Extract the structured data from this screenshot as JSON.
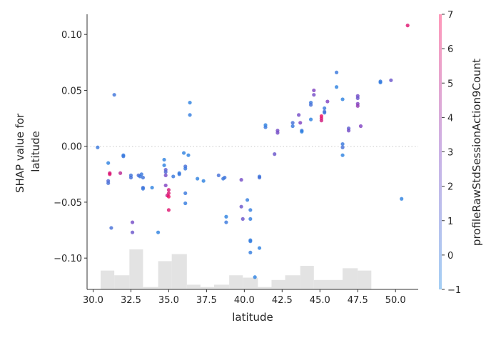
{
  "chart_data": {
    "type": "scatter",
    "xlabel": "latitude",
    "ylabel_lines": [
      "SHAP value for",
      "latitude"
    ],
    "colorbar_label": "profileRawStdSessionAction9Count",
    "xlim": [
      29.6,
      51.5
    ],
    "ylim": [
      -0.128,
      0.118
    ],
    "x_ticks": [
      30.0,
      32.5,
      35.0,
      37.5,
      40.0,
      42.5,
      45.0,
      47.5,
      50.0
    ],
    "x_tick_labels": [
      "30.0",
      "32.5",
      "35.0",
      "37.5",
      "40.0",
      "42.5",
      "45.0",
      "47.5",
      "50.0"
    ],
    "y_ticks": [
      0.1,
      0.05,
      0.0,
      -0.05,
      -0.1
    ],
    "y_tick_labels": [
      "0.10",
      "0.05",
      "0.00",
      "−0.05",
      "−0.10"
    ],
    "color_range": [
      -1,
      7
    ],
    "color_ticks": [
      7,
      6,
      5,
      4,
      3,
      2,
      1,
      0,
      -1
    ],
    "color_tick_labels": [
      "7",
      "6",
      "5",
      "4",
      "3",
      "2",
      "1",
      "0",
      "−1"
    ],
    "colors": {
      "low": "#1E88E5",
      "mid": "#7E3FC0",
      "high": "#FF0052",
      "histogram": "#e3e3e3",
      "zero_line": "#c8c8c8"
    },
    "histogram": {
      "bin_edges": [
        30.5,
        31.4,
        32.4,
        33.3,
        34.3,
        35.2,
        36.2,
        37.1,
        38.0,
        39.0,
        39.9,
        40.9,
        41.8,
        42.7,
        43.7,
        44.6,
        45.6,
        46.5,
        47.5,
        48.4,
        49.3,
        50.3
      ],
      "counts": [
        8,
        6,
        17,
        1,
        12,
        15,
        2,
        1,
        2,
        6,
        5,
        1,
        4,
        6,
        10,
        4,
        4,
        9,
        8,
        0,
        0
      ]
    },
    "points": [
      {
        "x": 30.3,
        "y": -0.001,
        "c": 0.0
      },
      {
        "x": 31.0,
        "y": -0.015,
        "c": -0.5
      },
      {
        "x": 31.0,
        "y": -0.031,
        "c": 1.0
      },
      {
        "x": 31.0,
        "y": -0.033,
        "c": 0.5
      },
      {
        "x": 31.1,
        "y": -0.024,
        "c": 5.5
      },
      {
        "x": 31.1,
        "y": -0.025,
        "c": 6.0
      },
      {
        "x": 31.2,
        "y": -0.073,
        "c": 0.5
      },
      {
        "x": 31.4,
        "y": 0.046,
        "c": 0.2
      },
      {
        "x": 31.8,
        "y": -0.024,
        "c": 4.8
      },
      {
        "x": 32.0,
        "y": -0.008,
        "c": -0.2
      },
      {
        "x": 32.0,
        "y": -0.009,
        "c": 0.0
      },
      {
        "x": 32.5,
        "y": -0.026,
        "c": 0.2
      },
      {
        "x": 32.5,
        "y": -0.028,
        "c": 0.5
      },
      {
        "x": 32.6,
        "y": -0.068,
        "c": 2.5
      },
      {
        "x": 32.6,
        "y": -0.077,
        "c": 2.0
      },
      {
        "x": 33.0,
        "y": -0.026,
        "c": 0.8
      },
      {
        "x": 33.1,
        "y": -0.027,
        "c": 0.0
      },
      {
        "x": 33.2,
        "y": -0.025,
        "c": 0.0
      },
      {
        "x": 33.3,
        "y": -0.028,
        "c": 0.3
      },
      {
        "x": 33.3,
        "y": -0.037,
        "c": 0.5
      },
      {
        "x": 33.3,
        "y": -0.038,
        "c": 0.0
      },
      {
        "x": 33.9,
        "y": -0.037,
        "c": -0.5
      },
      {
        "x": 34.3,
        "y": -0.077,
        "c": -0.5
      },
      {
        "x": 34.7,
        "y": -0.012,
        "c": -0.5
      },
      {
        "x": 34.7,
        "y": -0.017,
        "c": -0.5
      },
      {
        "x": 34.8,
        "y": -0.021,
        "c": 1.5
      },
      {
        "x": 34.8,
        "y": -0.023,
        "c": 1.0
      },
      {
        "x": 34.8,
        "y": -0.026,
        "c": 2.5
      },
      {
        "x": 34.8,
        "y": -0.035,
        "c": 3.0
      },
      {
        "x": 34.9,
        "y": -0.044,
        "c": 5.0
      },
      {
        "x": 35.0,
        "y": -0.039,
        "c": 5.5
      },
      {
        "x": 35.0,
        "y": -0.042,
        "c": 6.0
      },
      {
        "x": 35.0,
        "y": -0.045,
        "c": 6.5
      },
      {
        "x": 35.0,
        "y": -0.057,
        "c": 6.0
      },
      {
        "x": 35.3,
        "y": -0.027,
        "c": 0.0
      },
      {
        "x": 35.7,
        "y": -0.024,
        "c": -0.2
      },
      {
        "x": 35.7,
        "y": -0.025,
        "c": 0.0
      },
      {
        "x": 36.0,
        "y": -0.006,
        "c": -0.5
      },
      {
        "x": 36.1,
        "y": -0.018,
        "c": 0.5
      },
      {
        "x": 36.1,
        "y": -0.02,
        "c": 0.0
      },
      {
        "x": 36.1,
        "y": -0.042,
        "c": 0.0
      },
      {
        "x": 36.1,
        "y": -0.051,
        "c": -0.2
      },
      {
        "x": 36.3,
        "y": -0.008,
        "c": -0.5
      },
      {
        "x": 36.4,
        "y": 0.039,
        "c": -0.5
      },
      {
        "x": 36.4,
        "y": 0.028,
        "c": -0.3
      },
      {
        "x": 36.9,
        "y": -0.029,
        "c": -0.5
      },
      {
        "x": 37.3,
        "y": -0.031,
        "c": -0.5
      },
      {
        "x": 38.3,
        "y": -0.026,
        "c": 0.5
      },
      {
        "x": 38.6,
        "y": -0.029,
        "c": 0.0
      },
      {
        "x": 38.7,
        "y": -0.028,
        "c": 0.2
      },
      {
        "x": 38.8,
        "y": -0.063,
        "c": -0.5
      },
      {
        "x": 38.8,
        "y": -0.068,
        "c": 0.0
      },
      {
        "x": 39.8,
        "y": -0.03,
        "c": 2.5
      },
      {
        "x": 39.8,
        "y": -0.054,
        "c": 2.0
      },
      {
        "x": 39.9,
        "y": -0.065,
        "c": 2.0
      },
      {
        "x": 40.2,
        "y": -0.048,
        "c": -0.3
      },
      {
        "x": 40.4,
        "y": -0.057,
        "c": -0.3
      },
      {
        "x": 40.4,
        "y": -0.065,
        "c": -0.3
      },
      {
        "x": 40.4,
        "y": -0.084,
        "c": -0.3
      },
      {
        "x": 40.4,
        "y": -0.085,
        "c": -0.3
      },
      {
        "x": 40.4,
        "y": -0.095,
        "c": -0.3
      },
      {
        "x": 40.7,
        "y": -0.117,
        "c": -0.5
      },
      {
        "x": 41.0,
        "y": -0.027,
        "c": 0.0
      },
      {
        "x": 41.0,
        "y": -0.028,
        "c": 0.5
      },
      {
        "x": 41.0,
        "y": -0.091,
        "c": -0.5
      },
      {
        "x": 41.4,
        "y": 0.019,
        "c": -0.5
      },
      {
        "x": 41.4,
        "y": 0.017,
        "c": 0.0
      },
      {
        "x": 42.0,
        "y": -0.007,
        "c": 2.0
      },
      {
        "x": 42.2,
        "y": 0.014,
        "c": 2.5
      },
      {
        "x": 42.2,
        "y": 0.012,
        "c": 2.5
      },
      {
        "x": 43.2,
        "y": 0.021,
        "c": 0.5
      },
      {
        "x": 43.2,
        "y": 0.018,
        "c": 0.0
      },
      {
        "x": 43.6,
        "y": 0.028,
        "c": 2.5
      },
      {
        "x": 43.7,
        "y": 0.021,
        "c": 3.0
      },
      {
        "x": 43.8,
        "y": 0.014,
        "c": 0.0
      },
      {
        "x": 43.8,
        "y": 0.013,
        "c": -0.5
      },
      {
        "x": 44.4,
        "y": 0.039,
        "c": 0.0
      },
      {
        "x": 44.4,
        "y": 0.037,
        "c": 0.5
      },
      {
        "x": 44.4,
        "y": 0.024,
        "c": -0.5
      },
      {
        "x": 44.6,
        "y": 0.05,
        "c": 3.0
      },
      {
        "x": 44.6,
        "y": 0.046,
        "c": 2.5
      },
      {
        "x": 45.1,
        "y": 0.027,
        "c": 6.5
      },
      {
        "x": 45.1,
        "y": 0.025,
        "c": 6.0
      },
      {
        "x": 45.1,
        "y": 0.023,
        "c": 5.5
      },
      {
        "x": 45.3,
        "y": 0.034,
        "c": 0.0
      },
      {
        "x": 45.3,
        "y": 0.031,
        "c": 0.5
      },
      {
        "x": 45.3,
        "y": 0.03,
        "c": 0.3
      },
      {
        "x": 45.5,
        "y": 0.04,
        "c": 3.0
      },
      {
        "x": 46.1,
        "y": 0.066,
        "c": 0.0
      },
      {
        "x": 46.1,
        "y": 0.053,
        "c": -0.5
      },
      {
        "x": 46.5,
        "y": 0.042,
        "c": -0.5
      },
      {
        "x": 46.5,
        "y": 0.002,
        "c": 0.0
      },
      {
        "x": 46.5,
        "y": -0.001,
        "c": 0.5
      },
      {
        "x": 46.5,
        "y": -0.008,
        "c": -0.5
      },
      {
        "x": 46.9,
        "y": 0.016,
        "c": 1.5
      },
      {
        "x": 46.9,
        "y": 0.014,
        "c": 2.5
      },
      {
        "x": 47.5,
        "y": 0.045,
        "c": 2.5
      },
      {
        "x": 47.5,
        "y": 0.043,
        "c": 2.0
      },
      {
        "x": 47.5,
        "y": 0.038,
        "c": 3.0
      },
      {
        "x": 47.5,
        "y": 0.036,
        "c": 3.5
      },
      {
        "x": 47.7,
        "y": 0.018,
        "c": 3.0
      },
      {
        "x": 49.0,
        "y": 0.058,
        "c": 0.0
      },
      {
        "x": 49.0,
        "y": 0.057,
        "c": -0.3
      },
      {
        "x": 49.7,
        "y": 0.059,
        "c": 2.0
      },
      {
        "x": 50.4,
        "y": -0.047,
        "c": -0.5
      },
      {
        "x": 50.8,
        "y": 0.108,
        "c": 6.0
      }
    ]
  }
}
